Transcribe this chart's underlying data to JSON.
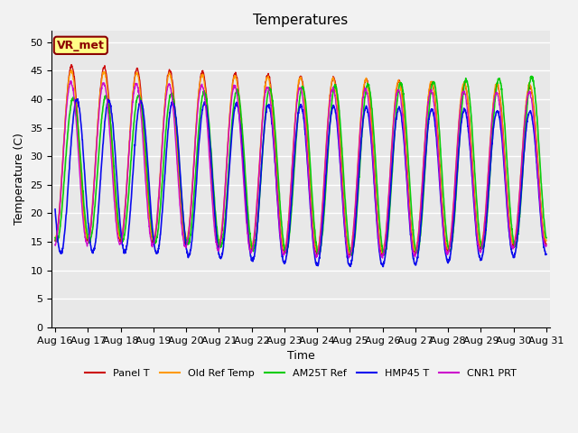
{
  "title": "Temperatures",
  "xlabel": "Time",
  "ylabel": "Temperature (C)",
  "ylim": [
    0,
    52
  ],
  "yticks": [
    0,
    5,
    10,
    15,
    20,
    25,
    30,
    35,
    40,
    45,
    50
  ],
  "lines": [
    {
      "label": "Panel T",
      "color": "#cc0000",
      "lw": 1.0
    },
    {
      "label": "Old Ref Temp",
      "color": "#ff9900",
      "lw": 1.0
    },
    {
      "label": "AM25T Ref",
      "color": "#00cc00",
      "lw": 1.2
    },
    {
      "label": "HMP45 T",
      "color": "#0000ee",
      "lw": 1.2
    },
    {
      "label": "CNR1 PRT",
      "color": "#cc00cc",
      "lw": 1.0
    }
  ],
  "annotation_text": "VR_met",
  "annotation_bbox": {
    "facecolor": "#ffff88",
    "edgecolor": "#8b0000",
    "linewidth": 1.5
  },
  "background_color": "#e8e8e8",
  "fig_background": "#f2f2f2",
  "grid_color": "#ffffff",
  "x_tick_labels": [
    "Aug 16",
    "Aug 17",
    "Aug 18",
    "Aug 19",
    "Aug 20",
    "Aug 21",
    "Aug 22",
    "Aug 23",
    "Aug 24",
    "Aug 25",
    "Aug 26",
    "Aug 27",
    "Aug 28",
    "Aug 29",
    "Aug 30",
    "Aug 31"
  ]
}
